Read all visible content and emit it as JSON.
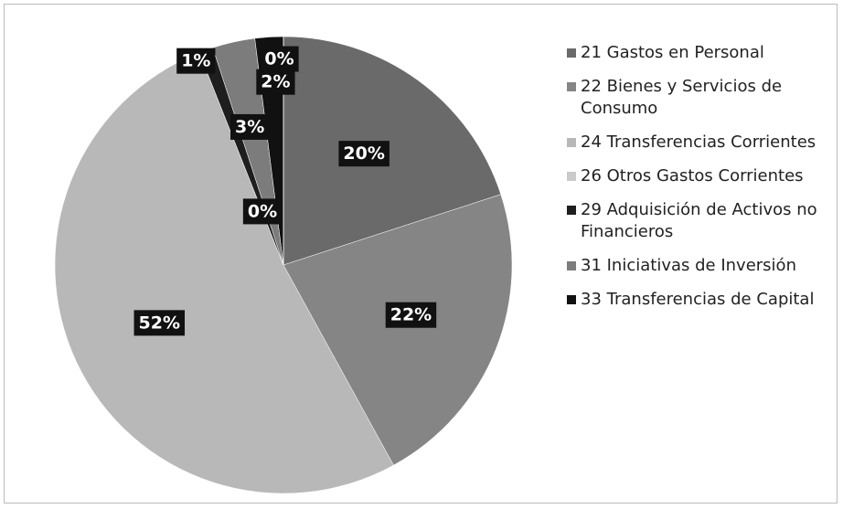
{
  "chart_data": {
    "type": "pie",
    "categories": [
      "21 Gastos en Personal",
      "22 Bienes y Servicios de Consumo",
      "24 Transferencias Corrientes",
      "26 Otros Gastos Corrientes",
      "29 Adquisición de Activos no Financieros",
      "31 Iniciativas de Inversión",
      "33 Transferencias de Capital",
      null
    ],
    "values": [
      20,
      22,
      52,
      0,
      1,
      3,
      2,
      0
    ],
    "value_labels": [
      "20%",
      "22%",
      "52%",
      "0%",
      "1%",
      "3%",
      "2%",
      "0%"
    ],
    "colors": [
      "#6a6a6a",
      "#858585",
      "#b8b8b8",
      "#cacaca",
      "#1e1e1e",
      "#7c7c7c",
      "#111111",
      "#999999"
    ],
    "legend": "right"
  }
}
